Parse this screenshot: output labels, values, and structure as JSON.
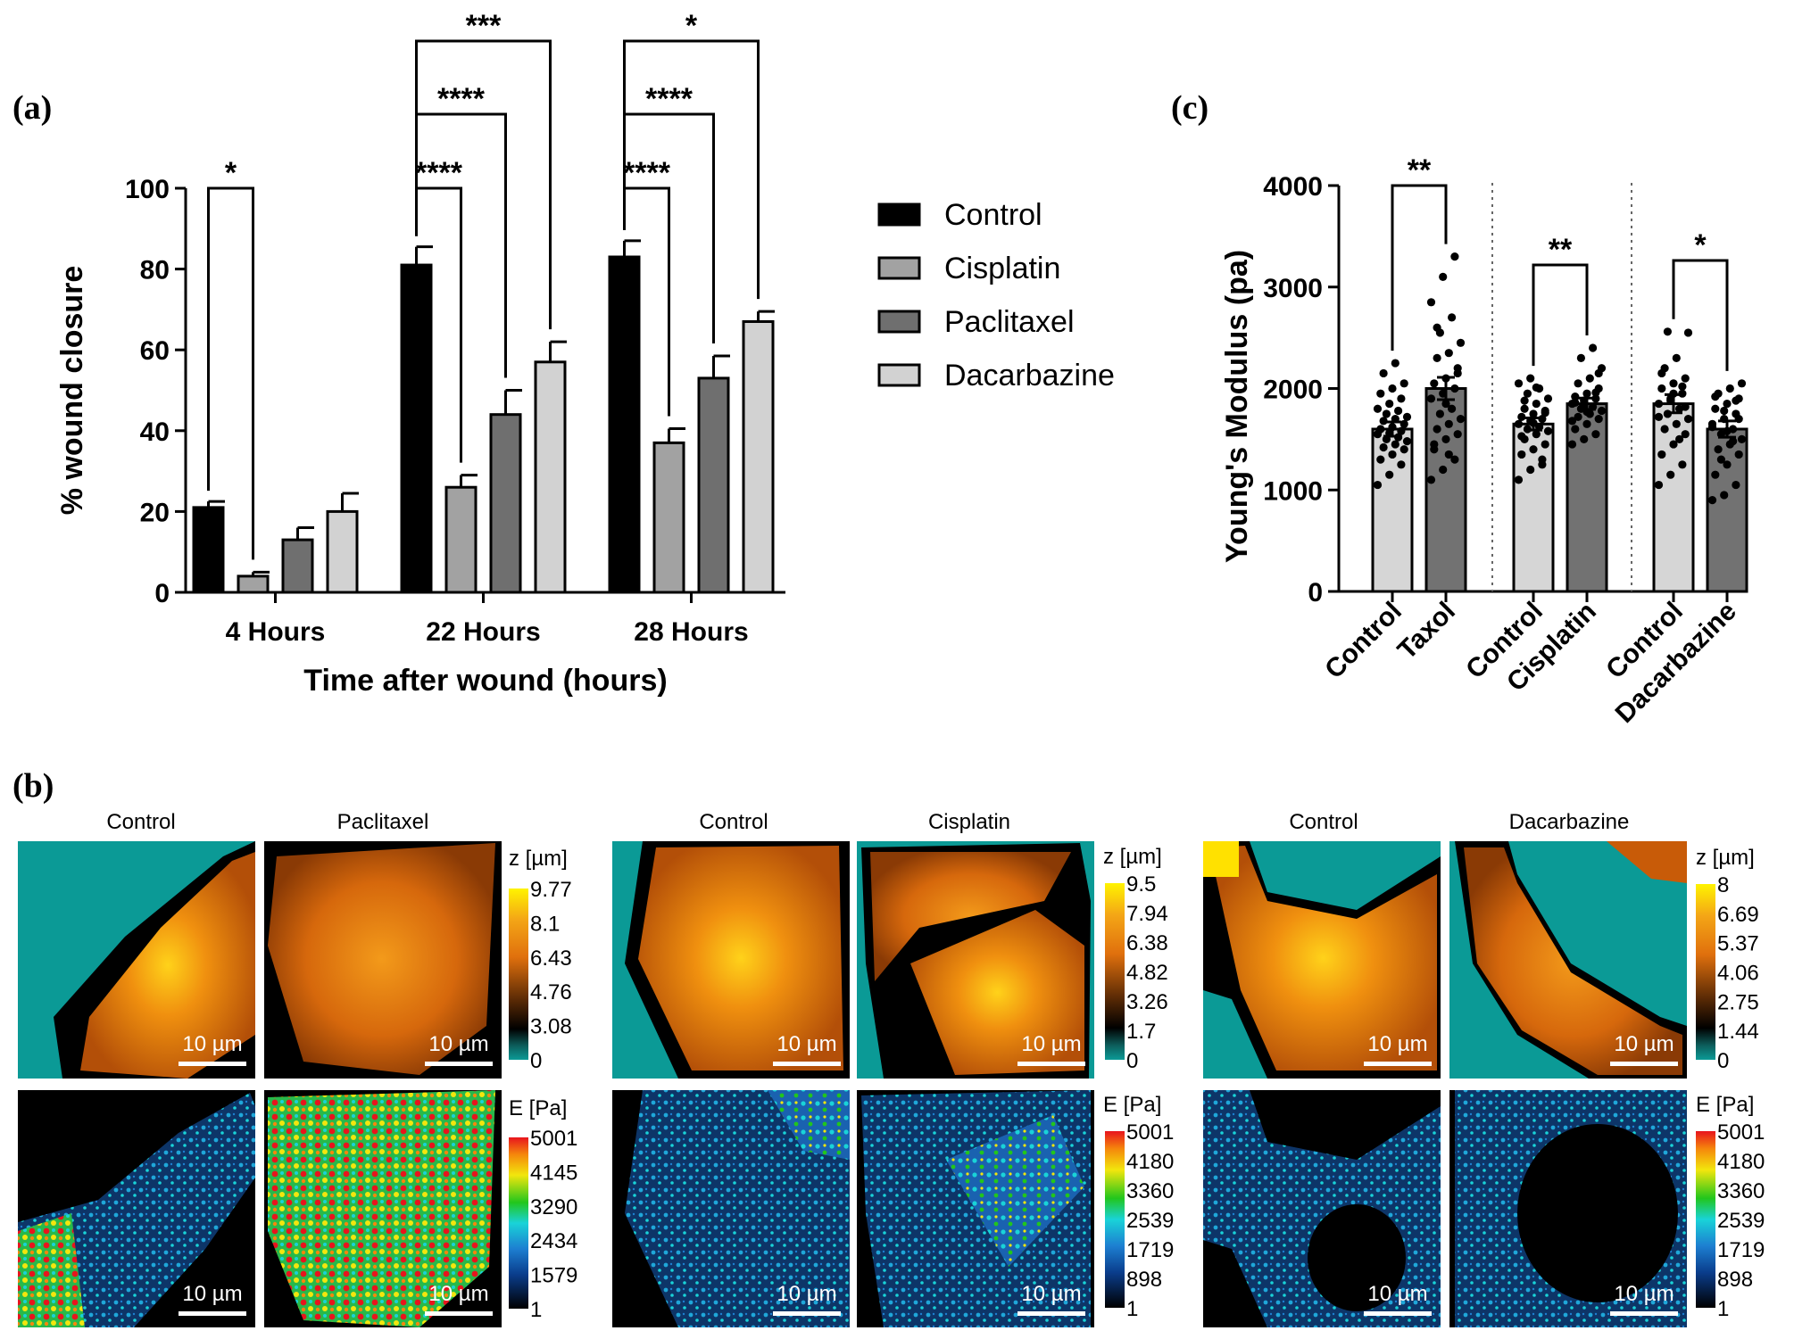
{
  "panel_labels": {
    "a": "(a)",
    "b": "(b)",
    "c": "(c)"
  },
  "colors": {
    "control": "#000000",
    "cisplatin": "#a2a2a2",
    "paclitaxel": "#6f6f6f",
    "dacarbazine": "#d2d2d2",
    "c_control": "#d6d6d6",
    "c_treat": "#727272"
  },
  "chart_data": [
    {
      "id": "a",
      "type": "bar",
      "title": "",
      "xlabel": "Time after wound (hours)",
      "ylabel": "% wound closure",
      "ylim": [
        0,
        100
      ],
      "yticks": [
        "0",
        "20",
        "40",
        "60",
        "80",
        "100"
      ],
      "categories": [
        "4 Hours",
        "22 Hours",
        "28 Hours"
      ],
      "series": [
        {
          "name": "Control",
          "values": [
            21,
            81,
            83
          ],
          "errors": [
            1.5,
            4.5,
            4
          ]
        },
        {
          "name": "Cisplatin",
          "values": [
            4,
            26,
            37
          ],
          "errors": [
            1,
            3,
            3.5
          ]
        },
        {
          "name": "Paclitaxel",
          "values": [
            13,
            44,
            53
          ],
          "errors": [
            3,
            6,
            5.5
          ]
        },
        {
          "name": "Dacarbazine",
          "values": [
            20,
            57,
            67
          ],
          "errors": [
            4.5,
            5,
            2.5
          ]
        }
      ],
      "significance": [
        {
          "group": 0,
          "from": 0,
          "to": 1,
          "label": "*"
        },
        {
          "group": 1,
          "from": 0,
          "to": 1,
          "label": "****"
        },
        {
          "group": 1,
          "from": 0,
          "to": 2,
          "label": "****"
        },
        {
          "group": 1,
          "from": 0,
          "to": 3,
          "label": "***"
        },
        {
          "group": 2,
          "from": 0,
          "to": 1,
          "label": "****"
        },
        {
          "group": 2,
          "from": 0,
          "to": 2,
          "label": "****"
        },
        {
          "group": 2,
          "from": 0,
          "to": 3,
          "label": "*"
        }
      ],
      "legend": [
        "Control",
        "Cisplatin",
        "Paclitaxel",
        "Dacarbazine"
      ],
      "legend_position": "right"
    },
    {
      "id": "c",
      "type": "bar",
      "title": "",
      "xlabel": "",
      "ylabel": "Young's Modulus (pa)",
      "ylim": [
        0,
        4000
      ],
      "yticks": [
        "0",
        "1000",
        "2000",
        "3000",
        "4000"
      ],
      "categories": [
        "Control",
        "Taxol",
        "Control",
        "Cisplatin",
        "Control",
        "Dacarbazine"
      ],
      "values": [
        1600,
        2000,
        1650,
        1850,
        1850,
        1600
      ],
      "errors": [
        70,
        110,
        60,
        55,
        90,
        80
      ],
      "points": [
        [
          1050,
          1150,
          1250,
          1300,
          1350,
          1400,
          1420,
          1450,
          1480,
          1500,
          1520,
          1550,
          1560,
          1580,
          1600,
          1620,
          1650,
          1680,
          1700,
          1720,
          1750,
          1780,
          1800,
          1850,
          1900,
          1950,
          2000,
          2050,
          2150,
          2250
        ],
        [
          1100,
          1200,
          1300,
          1400,
          1500,
          1550,
          1600,
          1650,
          1700,
          1750,
          1800,
          1900,
          1950,
          2000,
          2050,
          2100,
          2200,
          2300,
          2350,
          2450,
          2550,
          2700,
          2850,
          3100,
          3300,
          1450,
          1850,
          2150,
          2600,
          1350
        ],
        [
          1100,
          1200,
          1300,
          1350,
          1400,
          1450,
          1500,
          1550,
          1580,
          1600,
          1620,
          1650,
          1680,
          1700,
          1720,
          1750,
          1780,
          1800,
          1850,
          1900,
          1950,
          2000,
          2050,
          2100,
          1250,
          1530,
          1660,
          1760,
          1880,
          2010
        ],
        [
          1450,
          1500,
          1550,
          1600,
          1650,
          1700,
          1720,
          1750,
          1780,
          1800,
          1820,
          1850,
          1880,
          1900,
          1920,
          1950,
          2000,
          2050,
          2100,
          2200,
          2300,
          2400,
          1680,
          1840,
          1960,
          1860,
          1770,
          2150
        ],
        [
          1050,
          1150,
          1250,
          1350,
          1450,
          1550,
          1600,
          1650,
          1700,
          1750,
          1800,
          1850,
          1900,
          1950,
          2000,
          2050,
          2100,
          2200,
          2300,
          2550,
          2560,
          1500,
          1720,
          1880,
          2020,
          2150,
          1950,
          1820
        ],
        [
          900,
          950,
          1050,
          1150,
          1250,
          1350,
          1400,
          1450,
          1500,
          1550,
          1600,
          1650,
          1700,
          1750,
          1800,
          1850,
          1900,
          1950,
          2000,
          2050,
          1300,
          1480,
          1620,
          1780,
          1880,
          1920,
          1580,
          1700
        ]
      ],
      "significance": [
        {
          "from": 0,
          "to": 1,
          "label": "**"
        },
        {
          "from": 2,
          "to": 3,
          "label": "**"
        },
        {
          "from": 4,
          "to": 5,
          "label": "*"
        }
      ]
    }
  ],
  "panel_b": {
    "groups": [
      {
        "left_label": "Control",
        "right_label": "Paclitaxel",
        "z_title": "z [µm]",
        "z_ticks": [
          "9.77",
          "8.1",
          "6.43",
          "4.76",
          "3.08",
          "0"
        ],
        "e_title": "E [Pa]",
        "e_ticks": [
          "5001",
          "4145",
          "3290",
          "2434",
          "1579",
          "1"
        ]
      },
      {
        "left_label": "Control",
        "right_label": "Cisplatin",
        "z_title": "z [µm]",
        "z_ticks": [
          "9.5",
          "7.94",
          "6.38",
          "4.82",
          "3.26",
          "1.7",
          "0"
        ],
        "e_title": "E [Pa]",
        "e_ticks": [
          "5001",
          "4180",
          "3360",
          "2539",
          "1719",
          "898",
          "1"
        ]
      },
      {
        "left_label": "Control",
        "right_label": "Dacarbazine",
        "z_title": "z [µm]",
        "z_ticks": [
          "8",
          "6.69",
          "5.37",
          "4.06",
          "2.75",
          "1.44",
          "0"
        ],
        "e_title": "E [Pa]",
        "e_ticks": [
          "5001",
          "4180",
          "3360",
          "2539",
          "1719",
          "898",
          "1"
        ]
      }
    ],
    "scale_bar": "10 µm"
  }
}
